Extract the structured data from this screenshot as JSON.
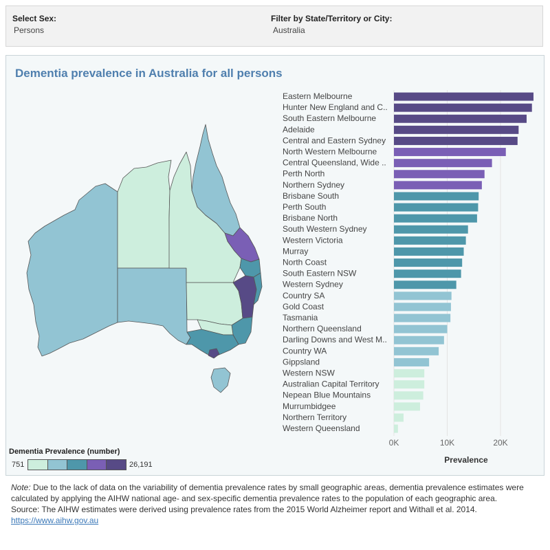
{
  "filters": {
    "sex_label": "Select Sex:",
    "sex_value": "Persons",
    "region_label": "Filter by State/Territory or City:",
    "region_value": "Australia"
  },
  "dashboard": {
    "title": "Dementia prevalence in Australia for all persons",
    "legend": {
      "title": "Dementia Prevalence (number)",
      "min_label": "751",
      "max_label": "26,191",
      "colors": [
        "#cdeedd",
        "#92c4d3",
        "#4e97aa",
        "#7a5fb5",
        "#574a86"
      ]
    }
  },
  "chart_data": {
    "type": "bar",
    "orientation": "horizontal",
    "xlabel": "Prevalence",
    "xlim": [
      0,
      27000
    ],
    "xticks": [
      "0K",
      "10K",
      "20K"
    ],
    "xtick_values": [
      0,
      10000,
      20000
    ],
    "grid": true,
    "categories": [
      "Eastern Melbourne",
      "Hunter New England and C..",
      "South Eastern Melbourne",
      "Adelaide",
      "Central and Eastern Sydney",
      "North Western Melbourne",
      "Central Queensland, Wide ..",
      "Perth North",
      "Northern Sydney",
      "Brisbane South",
      "Perth South",
      "Brisbane North",
      "South Western Sydney",
      "Western Victoria",
      "Murray",
      "North Coast",
      "South Eastern NSW",
      "Western Sydney",
      "Country SA",
      "Gold Coast",
      "Tasmania",
      "Northern Queensland",
      "Darling Downs and West M..",
      "Country WA",
      "Gippsland",
      "Western NSW",
      "Australian Capital Territory",
      "Nepean Blue Mountains",
      "Murrumbidgee",
      "Northern Territory",
      "Western Queensland"
    ],
    "values": [
      26191,
      25900,
      24900,
      23400,
      23200,
      21000,
      18400,
      17000,
      16500,
      15900,
      15800,
      15600,
      13900,
      13500,
      13100,
      12800,
      12600,
      11700,
      10800,
      10700,
      10600,
      10000,
      9400,
      8400,
      6600,
      5700,
      5700,
      5500,
      4900,
      1800,
      751
    ],
    "colors": [
      "#574a86",
      "#574a86",
      "#574a86",
      "#574a86",
      "#574a86",
      "#7a5fb5",
      "#7a5fb5",
      "#7a5fb5",
      "#7a5fb5",
      "#4e97aa",
      "#4e97aa",
      "#4e97aa",
      "#4e97aa",
      "#4e97aa",
      "#4e97aa",
      "#4e97aa",
      "#4e97aa",
      "#4e97aa",
      "#92c4d3",
      "#92c4d3",
      "#92c4d3",
      "#92c4d3",
      "#92c4d3",
      "#92c4d3",
      "#92c4d3",
      "#cdeedd",
      "#cdeedd",
      "#cdeedd",
      "#cdeedd",
      "#cdeedd",
      "#cdeedd"
    ]
  },
  "notes": {
    "note_lead": "Note:",
    "note_text": " Due to the lack of data on the variability of dementia prevalence rates by small geographic areas, dementia prevalence estimates were calculated by applying the AIHW national age- and sex-specific dementia prevalence rates to the population of each geographic area.",
    "source_text": "Source: The AIHW estimates were derived using prevalence rates from the 2015 World Alzheimer report and Withall et al. 2014.",
    "link_text": "https://www.aihw.gov.au"
  }
}
